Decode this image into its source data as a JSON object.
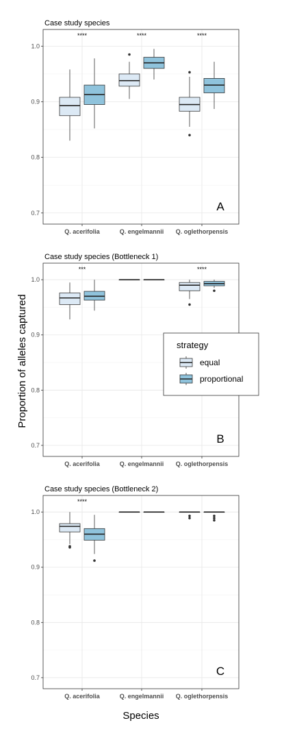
{
  "figure": {
    "ylabel": "Proportion of alleles captured",
    "xlabel": "Species"
  },
  "legend": {
    "title": "strategy",
    "items": [
      {
        "label": "equal",
        "color": "#dce9f5"
      },
      {
        "label": "proportional",
        "color": "#8fc3dc"
      }
    ]
  },
  "chart_data": [
    {
      "type": "box",
      "title": "Case study species",
      "panel_letter": "A",
      "categories": [
        "Q. acerifolia",
        "Q. engelmannii",
        "Q. oglethorpensis"
      ],
      "yticks": [
        0.7,
        0.8,
        0.9,
        1.0
      ],
      "ylim": [
        0.68,
        1.03
      ],
      "significance": [
        "****",
        "****",
        "****"
      ],
      "series": [
        {
          "name": "equal",
          "color": "#dce9f5",
          "boxes": [
            {
              "min": 0.83,
              "q1": 0.875,
              "median": 0.893,
              "q3": 0.908,
              "max": 0.958,
              "outliers": []
            },
            {
              "min": 0.905,
              "q1": 0.928,
              "median": 0.938,
              "q3": 0.95,
              "max": 0.972,
              "outliers": [
                0.985
              ]
            },
            {
              "min": 0.855,
              "q1": 0.883,
              "median": 0.895,
              "q3": 0.908,
              "max": 0.945,
              "outliers": [
                0.953,
                0.84
              ]
            }
          ]
        },
        {
          "name": "proportional",
          "color": "#8fc3dc",
          "boxes": [
            {
              "min": 0.852,
              "q1": 0.895,
              "median": 0.913,
              "q3": 0.93,
              "max": 0.978,
              "outliers": []
            },
            {
              "min": 0.94,
              "q1": 0.96,
              "median": 0.97,
              "q3": 0.98,
              "max": 0.995,
              "outliers": []
            },
            {
              "min": 0.887,
              "q1": 0.916,
              "median": 0.93,
              "q3": 0.942,
              "max": 0.972,
              "outliers": []
            }
          ]
        }
      ]
    },
    {
      "type": "box",
      "title": "Case study species (Bottleneck 1)",
      "panel_letter": "B",
      "categories": [
        "Q. acerifolia",
        "Q. engelmannii",
        "Q. oglethorpensis"
      ],
      "yticks": [
        0.7,
        0.8,
        0.9,
        1.0
      ],
      "ylim": [
        0.68,
        1.03
      ],
      "significance": [
        "***",
        "",
        "****"
      ],
      "series": [
        {
          "name": "equal",
          "color": "#dce9f5",
          "boxes": [
            {
              "min": 0.928,
              "q1": 0.955,
              "median": 0.967,
              "q3": 0.976,
              "max": 0.995,
              "outliers": []
            },
            {
              "min": 1.0,
              "q1": 1.0,
              "median": 1.0,
              "q3": 1.0,
              "max": 1.0,
              "outliers": []
            },
            {
              "min": 0.965,
              "q1": 0.98,
              "median": 0.99,
              "q3": 0.995,
              "max": 1.0,
              "outliers": [
                0.955
              ]
            }
          ]
        },
        {
          "name": "proportional",
          "color": "#8fc3dc",
          "boxes": [
            {
              "min": 0.944,
              "q1": 0.963,
              "median": 0.97,
              "q3": 0.979,
              "max": 1.0,
              "outliers": []
            },
            {
              "min": 1.0,
              "q1": 1.0,
              "median": 1.0,
              "q3": 1.0,
              "max": 1.0,
              "outliers": []
            },
            {
              "min": 0.985,
              "q1": 0.989,
              "median": 0.993,
              "q3": 0.997,
              "max": 1.0,
              "outliers": [
                0.98
              ]
            }
          ]
        }
      ]
    },
    {
      "type": "box",
      "title": "Case study species (Bottleneck 2)",
      "panel_letter": "C",
      "categories": [
        "Q. acerifolia",
        "Q. engelmannii",
        "Q. oglethorpensis"
      ],
      "yticks": [
        0.7,
        0.8,
        0.9,
        1.0
      ],
      "ylim": [
        0.68,
        1.03
      ],
      "significance": [
        "****",
        "",
        ""
      ],
      "series": [
        {
          "name": "equal",
          "color": "#dce9f5",
          "boxes": [
            {
              "min": 0.942,
              "q1": 0.964,
              "median": 0.974,
              "q3": 0.979,
              "max": 1.0,
              "outliers": [
                0.938,
                0.936
              ]
            },
            {
              "min": 1.0,
              "q1": 1.0,
              "median": 1.0,
              "q3": 1.0,
              "max": 1.0,
              "outliers": []
            },
            {
              "min": 1.0,
              "q1": 1.0,
              "median": 1.0,
              "q3": 1.0,
              "max": 1.0,
              "outliers": [
                0.993,
                0.989
              ]
            }
          ]
        },
        {
          "name": "proportional",
          "color": "#8fc3dc",
          "boxes": [
            {
              "min": 0.924,
              "q1": 0.949,
              "median": 0.96,
              "q3": 0.97,
              "max": 0.995,
              "outliers": [
                0.912
              ]
            },
            {
              "min": 1.0,
              "q1": 1.0,
              "median": 1.0,
              "q3": 1.0,
              "max": 1.0,
              "outliers": []
            },
            {
              "min": 1.0,
              "q1": 1.0,
              "median": 1.0,
              "q3": 1.0,
              "max": 1.0,
              "outliers": [
                0.993,
                0.989,
                0.985
              ]
            }
          ]
        }
      ]
    }
  ]
}
